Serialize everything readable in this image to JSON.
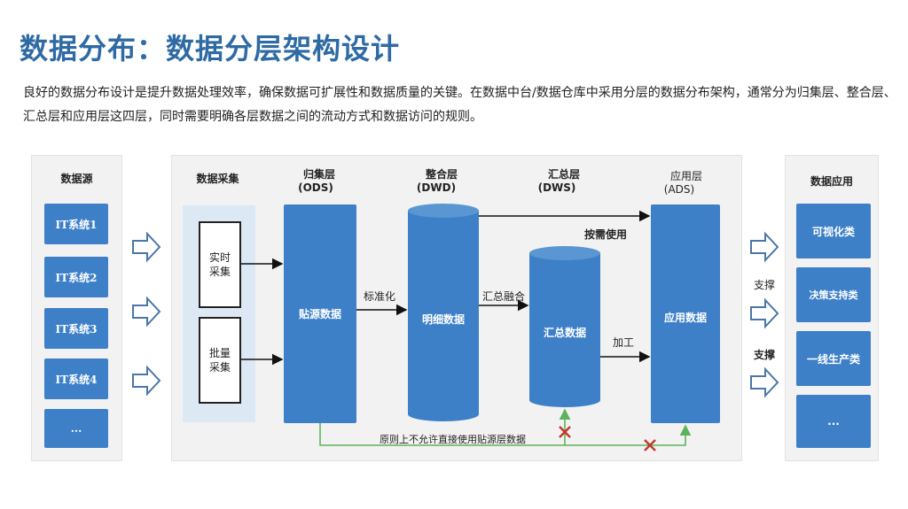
{
  "title": "数据分布：数据分层架构设计",
  "intro": "良好的数据分布设计是提升数据处理效率，确保数据可扩展性和数据质量的关键。在数据中台/数据仓库中采用分层的数据分布架构，通常分为归集层、整合层、汇总层和应用层这四层，同时需要明确各层数据之间的流动方式和数据访问的规则。",
  "sources": {
    "heading": "数据源",
    "items": [
      "IT系统1",
      "IT系统2",
      "IT系统3",
      "IT系统4",
      "..."
    ]
  },
  "collection": {
    "heading": "数据采集",
    "realtime": "实时\n采集",
    "batch": "批量\n采集"
  },
  "layers": {
    "ods": {
      "name": "归集层",
      "code": "(ODS)",
      "box": "贴源数据"
    },
    "dwd": {
      "name": "整合层",
      "code": "(DWD)",
      "box": "明细数据"
    },
    "dws": {
      "name": "汇总层",
      "code": "(DWS)",
      "box": "汇总数据"
    },
    "ads": {
      "name": "应用层",
      "code": "(ADS)",
      "box": "应用数据"
    }
  },
  "flows": {
    "standardize": "标准化",
    "aggregate": "汇总融合",
    "on_demand": "按需使用",
    "process": "加工",
    "rule": "原则上不允许直接使用贴源层数据"
  },
  "applications": {
    "heading": "数据应用",
    "items": [
      "可视化类",
      "决策支持类",
      "一线生产类",
      "..."
    ]
  },
  "support_labels": [
    "支撑",
    "支撑"
  ],
  "colors": {
    "title": "#2e6aa3",
    "box": "#3d80c7",
    "panel": "#f2f2f2",
    "arrow_green": "#5cb35c",
    "cross_red": "#c0392b"
  }
}
